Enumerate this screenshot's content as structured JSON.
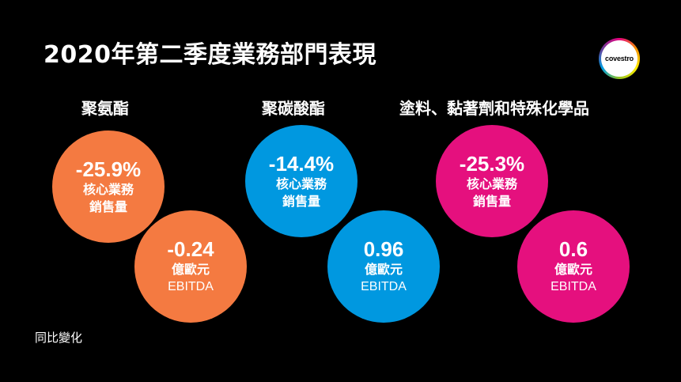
{
  "title": "2020年第二季度業務部門表現",
  "logo": {
    "text": "covestro"
  },
  "colors": {
    "orange": "#f47a41",
    "blue": "#0098e0",
    "magenta": "#e5107e",
    "background": "#000000",
    "text": "#ffffff"
  },
  "segments": [
    {
      "name": "聚氨酯",
      "color": "orange",
      "sales_change": "-25.9%",
      "sales_label_1": "核心業務",
      "sales_label_2": "銷售量",
      "ebitda_value": "-0.24",
      "ebitda_unit": "億歐元",
      "ebitda_label": "EBITDA"
    },
    {
      "name": "聚碳酸酯",
      "color": "blue",
      "sales_change": "-14.4%",
      "sales_label_1": "核心業務",
      "sales_label_2": "銷售量",
      "ebitda_value": "0.96",
      "ebitda_unit": "億歐元",
      "ebitda_label": "EBITDA"
    },
    {
      "name": "塗料、黏著劑和特殊化學品",
      "color": "magenta",
      "sales_change": "-25.3%",
      "sales_label_1": "核心業務",
      "sales_label_2": "銷售量",
      "ebitda_value": "0.6",
      "ebitda_unit": "億歐元",
      "ebitda_label": "EBITDA"
    }
  ],
  "footnote": "同比變化"
}
